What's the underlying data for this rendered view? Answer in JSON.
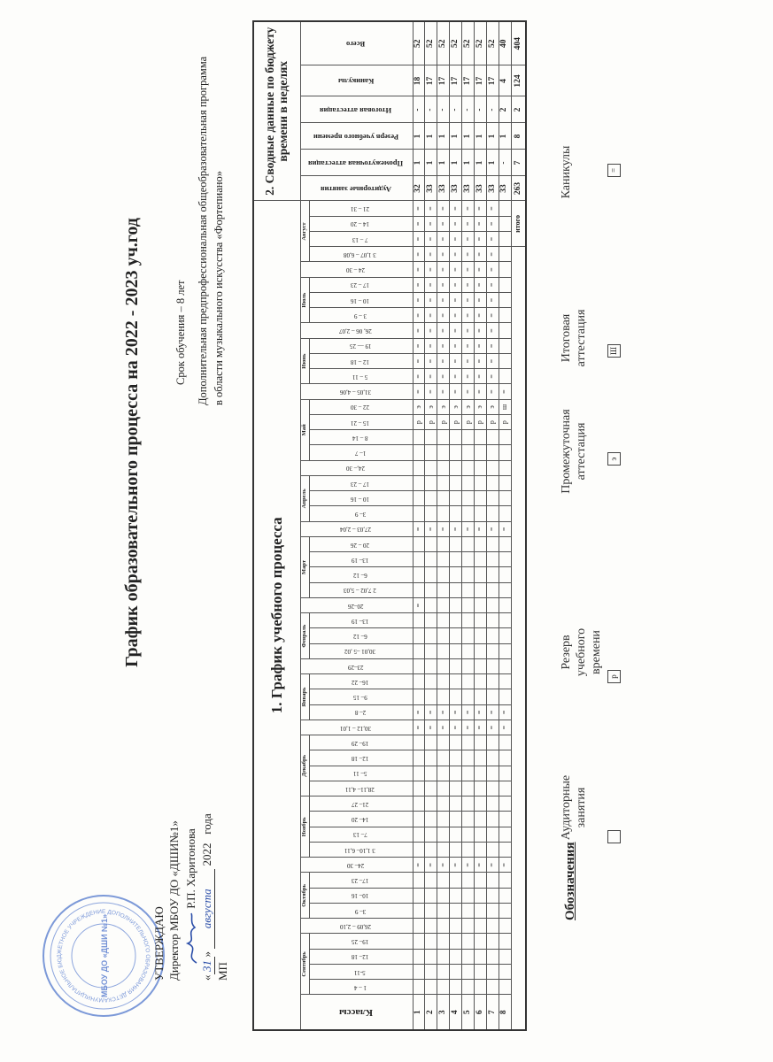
{
  "header": {
    "title": "График образовательного процесса на 2022 - 2023 уч.год",
    "approval": {
      "line1": "УТВЕРЖДАЮ",
      "line2": "Директор МБОУ ДО «ДШИ№1»",
      "director": "Р.П. Харитонова",
      "day": "31",
      "month": "августа",
      "year": "2022",
      "year_suffix": "года",
      "seal_label": "МП"
    },
    "stamp_text": "МБОУ ДО «ДШИ №1»",
    "term": "Срок обучения – 8 лет",
    "program_line1": "Дополнительная предпрофессиональная общеобразовательная программа",
    "program_line2": "в области  музыкального искусства «Фортепиано»"
  },
  "schedule": {
    "section_title": "1. График учебного процесса",
    "classes_header": "Классы",
    "totals_label": "итого",
    "columns": [
      {
        "month": "Сентябрь",
        "weeks": [
          "1 – 4",
          "5-11",
          "12– 18",
          "19– 25"
        ]
      },
      {
        "gap": "26,09 – 2,10"
      },
      {
        "month": "Октябрь",
        "weeks": [
          "3– 9",
          "10– 16",
          "17– 23"
        ]
      },
      {
        "gap": "24– 30"
      },
      {
        "month": "Ноябрь",
        "weeks": [
          "3 1,10– 6,11",
          "7– 13",
          "14– 20",
          "21– 27"
        ]
      },
      {
        "month": "Декабрь",
        "weeks": [
          "28,11– 4,11",
          "5– 11",
          "12– 18",
          "19– 29"
        ]
      },
      {
        "gap": "30,12 – 1,01"
      },
      {
        "month": "Январь",
        "weeks": [
          "2– 8",
          "9– 15",
          "16– 22"
        ]
      },
      {
        "gap": "23–29"
      },
      {
        "month": "Февраль",
        "weeks": [
          "30,01 –5 ,02",
          "6– 12",
          "13– 19"
        ]
      },
      {
        "gap": "20–26"
      },
      {
        "month": "Март",
        "weeks": [
          "2 7,02 – 5,03",
          "6– 12",
          "13– 19",
          "20 – 26"
        ]
      },
      {
        "gap": "27,03 – 2,04"
      },
      {
        "month": "Апрель",
        "weeks": [
          "3– 9",
          "10 – 16",
          "17 – 23"
        ]
      },
      {
        "gap": "24,– 30"
      },
      {
        "month": "Май",
        "weeks": [
          "1– 7",
          "8 – 14",
          "15 – 21",
          "22 – 30"
        ]
      },
      {
        "gap": "31,05 – 4,06"
      },
      {
        "month": "Июнь",
        "weeks": [
          "5 – 11",
          "12 – 18",
          "19 — 25"
        ]
      },
      {
        "gap": "26, 06 – 2,07"
      },
      {
        "month": "Июль",
        "weeks": [
          "3 – 9",
          "10 – 16",
          "17 – 23"
        ]
      },
      {
        "gap": "24 – 30"
      },
      {
        "month": "Август",
        "weeks": [
          "3 1,07 – 6,08",
          "7 – 13",
          "14 – 20",
          "21 – 31"
        ]
      }
    ],
    "rows": [
      {
        "class": "1",
        "marks": "........=........==......=....=......рэ============="
      },
      {
        "class": "2",
        "marks": "........=........==...........=......рэ============="
      },
      {
        "class": "3",
        "marks": "........=........==...........=......рэ============="
      },
      {
        "class": "4",
        "marks": "........=........==...........=......рэ============="
      },
      {
        "class": "5",
        "marks": "........=........==...........=......рэ============="
      },
      {
        "class": "6",
        "marks": "........=........==...........=......рэ============="
      },
      {
        "class": "7",
        "marks": "........=........==...........=......рэ============="
      },
      {
        "class": "8",
        "marks": "........=........==...........=......рш=............"
      }
    ]
  },
  "summary": {
    "section_title": "2. Сводные данные по бюджету времени в неделях",
    "headers": [
      "Аудиторные занятия",
      "Промежуточная аттестация",
      "Резерв учебного времени",
      "Итоговая аттестация",
      "Каникулы",
      "Всего"
    ],
    "rows": [
      [
        "32",
        "1",
        "1",
        "-",
        "18",
        "52"
      ],
      [
        "33",
        "1",
        "1",
        "-",
        "17",
        "52"
      ],
      [
        "33",
        "1",
        "1",
        "-",
        "17",
        "52"
      ],
      [
        "33",
        "1",
        "1",
        "-",
        "17",
        "52"
      ],
      [
        "33",
        "1",
        "1",
        "-",
        "17",
        "52"
      ],
      [
        "33",
        "1",
        "1",
        "-",
        "17",
        "52"
      ],
      [
        "33",
        "1",
        "1",
        "-",
        "17",
        "52"
      ],
      [
        "33",
        "-",
        "1",
        "2",
        "4",
        "40"
      ]
    ],
    "totals": [
      "263",
      "7",
      "8",
      "2",
      "124",
      "404"
    ]
  },
  "legend": {
    "title": "Обозначения",
    "items": [
      {
        "line1": "Аудиторные",
        "line2": "занятия",
        "symbol": ""
      },
      {
        "line1": "Резерв учебного",
        "line2": "времени",
        "symbol": "р"
      },
      {
        "line1": "Промежуточная",
        "line2": "аттестация",
        "symbol": "э"
      },
      {
        "line1": "Итоговая",
        "line2": "аттестация",
        "symbol": "Ш"
      },
      {
        "line1": "Каникулы",
        "line2": "",
        "symbol": "="
      }
    ]
  },
  "colors": {
    "ink": "#222222",
    "stamp": "#3a5fbf",
    "paper": "#fdfdfb"
  }
}
